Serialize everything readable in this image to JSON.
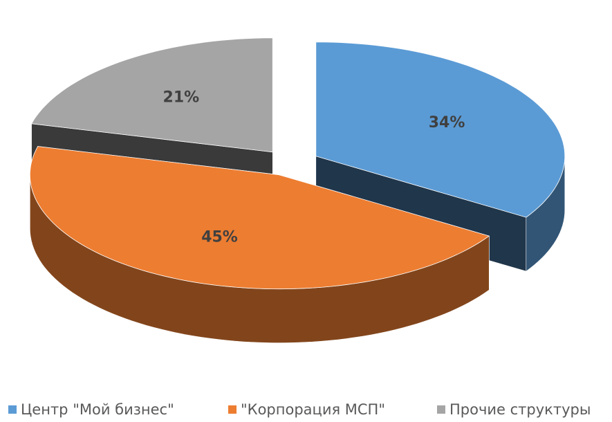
{
  "chart_data": {
    "type": "pie",
    "categories": [
      "Центр \"Мой бизнес\"",
      "\"Корпорация МСП\"",
      "Прочие структуры"
    ],
    "values": [
      34,
      45,
      21
    ],
    "value_labels": [
      "34%",
      "45%",
      "21%"
    ],
    "colors": [
      "#5b9bd5",
      "#ed7d31",
      "#a5a5a5"
    ],
    "legend": "bottom"
  }
}
